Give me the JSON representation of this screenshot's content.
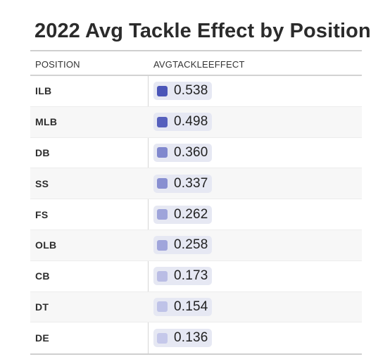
{
  "title": "2022 Avg Tackle Effect by Position",
  "columns": [
    "POSITION",
    "AVGTACKLEEFFECT"
  ],
  "colors": {
    "swatch_max": "#4a55b8",
    "swatch_min": "#c5c8ea",
    "pill_background": "#e6e8f3"
  },
  "chart_data": {
    "type": "table",
    "title": "2022 Avg Tackle Effect by Position",
    "columns": [
      "POSITION",
      "AVGTACKLEEFFECT"
    ],
    "rows": [
      {
        "position": "ILB",
        "value": 0.538,
        "display": "0.538"
      },
      {
        "position": "MLB",
        "value": 0.498,
        "display": "0.498"
      },
      {
        "position": "DB",
        "value": 0.36,
        "display": "0.360"
      },
      {
        "position": "SS",
        "value": 0.337,
        "display": "0.337"
      },
      {
        "position": "FS",
        "value": 0.262,
        "display": "0.262"
      },
      {
        "position": "OLB",
        "value": 0.258,
        "display": "0.258"
      },
      {
        "position": "CB",
        "value": 0.173,
        "display": "0.173"
      },
      {
        "position": "DT",
        "value": 0.154,
        "display": "0.154"
      },
      {
        "position": "DE",
        "value": 0.136,
        "display": "0.136"
      }
    ]
  }
}
